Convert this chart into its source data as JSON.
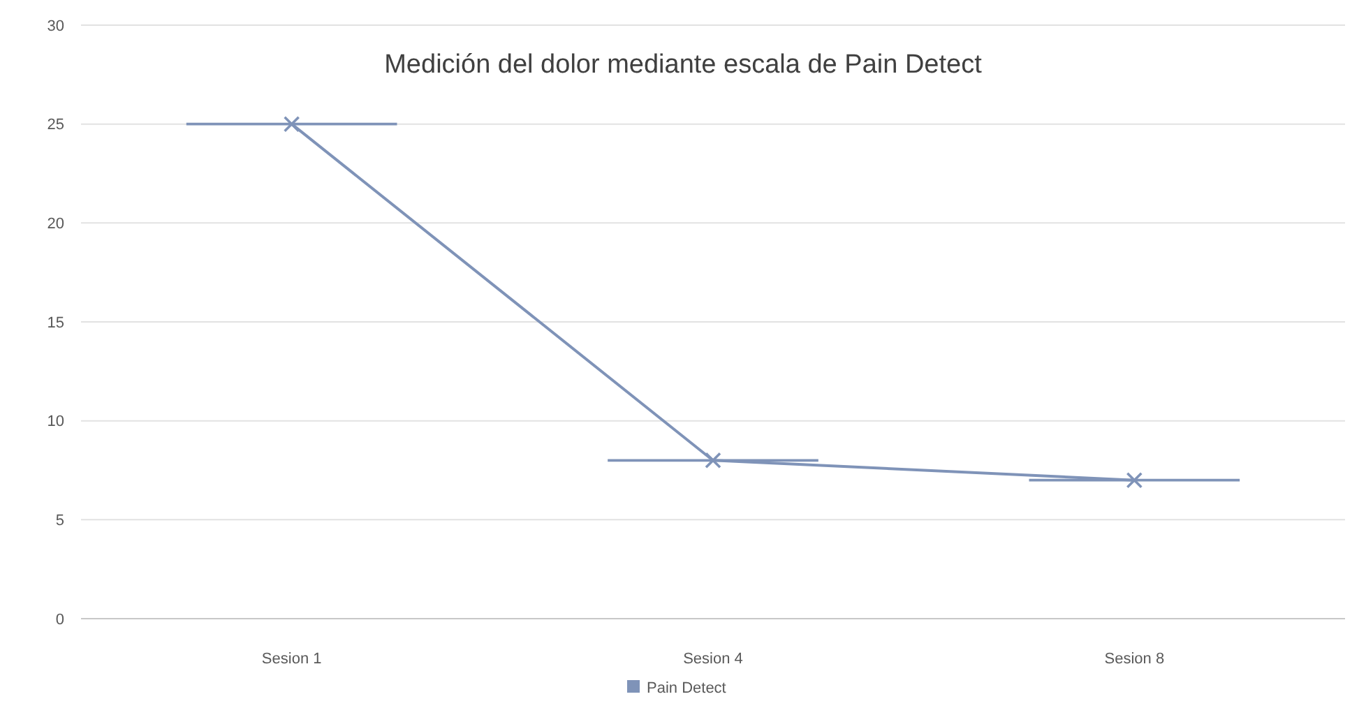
{
  "chart_data": {
    "type": "line",
    "title": "Medición del dolor mediante escala de Pain Detect",
    "categories": [
      "Sesion 1",
      "Sesion 4",
      "Sesion 8"
    ],
    "series": [
      {
        "name": "Pain Detect",
        "color": "#7f93b8",
        "values": [
          25,
          8,
          7
        ]
      }
    ],
    "ylim": [
      0,
      30
    ],
    "yticks": [
      0,
      5,
      10,
      15,
      20,
      25,
      30
    ],
    "grid": "y",
    "legend": "bottom",
    "marker": "cross"
  }
}
